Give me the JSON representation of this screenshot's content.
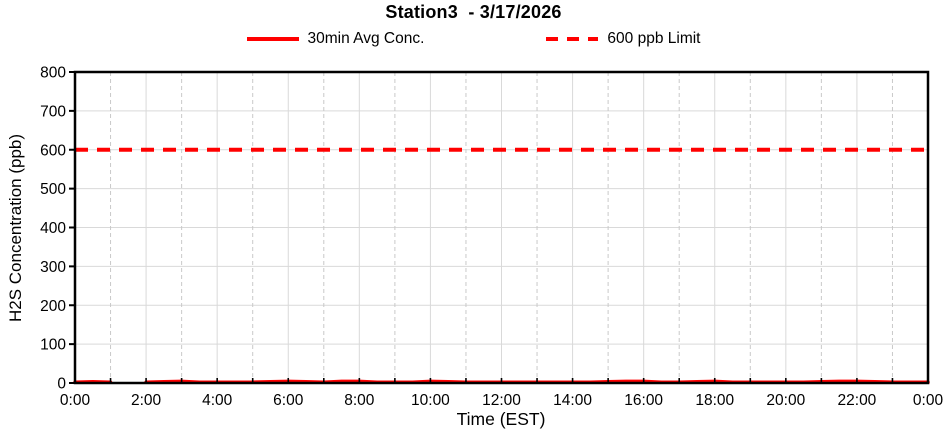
{
  "chart_data": {
    "type": "line",
    "title": "Station3  - 3/17/2026",
    "xlabel": "Time (EST)",
    "ylabel": "H2S Concentration (ppb)",
    "ylim": [
      0,
      800
    ],
    "ytick_interval": 100,
    "ytick_labels": [
      "0",
      "100",
      "200",
      "300",
      "400",
      "500",
      "600",
      "700",
      "800"
    ],
    "x_total_hours": 24,
    "x_major_every_hours": 2,
    "xtick_labels": [
      "0:00",
      "2:00",
      "4:00",
      "6:00",
      "8:00",
      "10:00",
      "12:00",
      "14:00",
      "16:00",
      "18:00",
      "20:00",
      "22:00",
      "0:00"
    ],
    "grid": {
      "horizontal": "solid",
      "vertical_major": "solid",
      "vertical_minor": "dashed"
    },
    "legend_position": "top",
    "colors": {
      "series_red": "#FF0000",
      "grid_major": "#D9D9D9",
      "grid_minor": "#C9C9C9",
      "axis": "#000000",
      "text": "#000000",
      "background": "#FFFFFF"
    },
    "series": [
      {
        "name": "30min Avg Conc.",
        "style": "solid",
        "color": "#FF0000",
        "note": "near-zero values all day; data gap between 1:00 and 2:00",
        "x_hours": [
          0,
          0.5,
          1,
          1.5,
          2,
          2.5,
          3,
          3.5,
          4,
          4.5,
          5,
          5.5,
          6,
          6.5,
          7,
          7.5,
          8,
          8.5,
          9,
          9.5,
          10,
          10.5,
          11,
          11.5,
          12,
          12.5,
          13,
          13.5,
          14,
          14.5,
          15,
          15.5,
          16,
          16.5,
          17,
          17.5,
          18,
          18.5,
          19,
          19.5,
          20,
          20.5,
          21,
          21.5,
          22,
          22.5,
          23,
          23.5,
          24
        ],
        "y_ppb": [
          2,
          3,
          2,
          null,
          2,
          3,
          4,
          2,
          2,
          2,
          2,
          3,
          4,
          3,
          2,
          4,
          4,
          2,
          2,
          2,
          4,
          3,
          2,
          2,
          2,
          2,
          2,
          2,
          2,
          2,
          3,
          4,
          4,
          2,
          2,
          3,
          4,
          2,
          2,
          2,
          2,
          2,
          3,
          4,
          4,
          3,
          2,
          2,
          2
        ]
      },
      {
        "name": "600 ppb Limit",
        "style": "dashed",
        "color": "#FF0000",
        "y_ppb": 600
      }
    ]
  }
}
